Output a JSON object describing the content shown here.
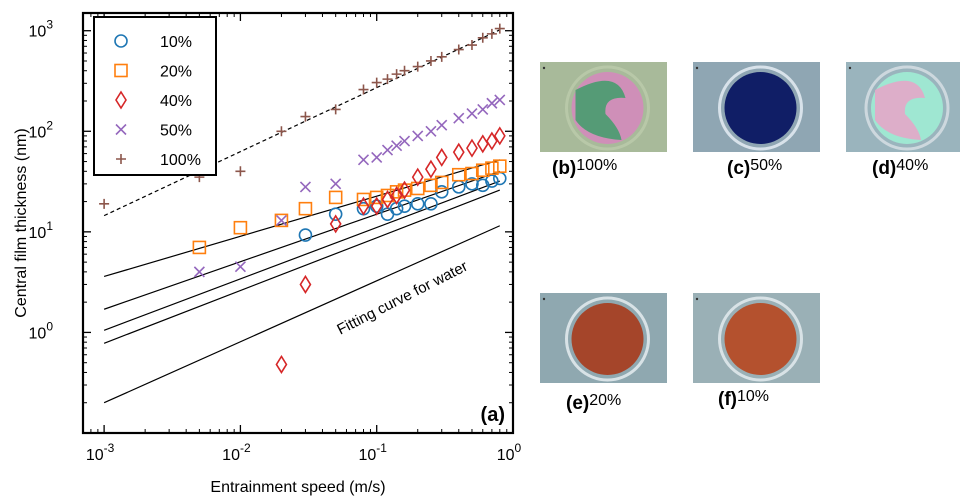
{
  "chart_data": {
    "type": "scatter",
    "panel_label": "(a)",
    "xlabel": "Entrainment speed (m/s)",
    "ylabel": "Central film thickness (nm)",
    "xscale": "log",
    "yscale": "log",
    "xlim": [
      0.0007,
      1.0
    ],
    "ylim": [
      0.1,
      1500
    ],
    "xticks": [
      {
        "value": 0.001,
        "base": "10",
        "exp": "-3"
      },
      {
        "value": 0.01,
        "base": "10",
        "exp": "-2"
      },
      {
        "value": 0.1,
        "base": "10",
        "exp": "-1"
      },
      {
        "value": 1,
        "base": "10",
        "exp": "0"
      }
    ],
    "yticks": [
      {
        "value": 1,
        "base": "10",
        "exp": "0"
      },
      {
        "value": 10,
        "base": "10",
        "exp": "1"
      },
      {
        "value": 100,
        "base": "10",
        "exp": "2"
      },
      {
        "value": 1000,
        "base": "10",
        "exp": "3"
      }
    ],
    "legend_position": "top-left",
    "series": [
      {
        "name": "10%",
        "marker": "circle",
        "color": "#1f77b4",
        "x": [
          0.03,
          0.05,
          0.08,
          0.1,
          0.12,
          0.14,
          0.16,
          0.2,
          0.25,
          0.3,
          0.4,
          0.5,
          0.6,
          0.7,
          0.8
        ],
        "y": [
          9.3,
          15,
          17,
          18,
          15,
          17,
          18,
          19,
          19,
          25,
          28,
          30,
          29,
          32,
          34
        ]
      },
      {
        "name": "20%",
        "marker": "square",
        "color": "#ff7f0e",
        "x": [
          0.005,
          0.01,
          0.02,
          0.03,
          0.05,
          0.08,
          0.1,
          0.12,
          0.14,
          0.16,
          0.2,
          0.25,
          0.3,
          0.4,
          0.5,
          0.6,
          0.7,
          0.8
        ],
        "y": [
          7,
          11,
          13,
          17,
          22,
          21,
          22,
          23,
          25,
          26,
          27,
          29,
          31,
          37,
          38,
          41,
          43,
          45
        ]
      },
      {
        "name": "40%",
        "marker": "diamond",
        "color": "#d62728",
        "x": [
          0.02,
          0.03,
          0.05,
          0.08,
          0.1,
          0.12,
          0.14,
          0.16,
          0.2,
          0.25,
          0.3,
          0.4,
          0.5,
          0.6,
          0.7,
          0.8
        ],
        "y": [
          0.48,
          3,
          12,
          18,
          18,
          21,
          23,
          26,
          35,
          42,
          55,
          62,
          68,
          75,
          80,
          90
        ]
      },
      {
        "name": "50%",
        "marker": "x",
        "color": "#9467bd",
        "x": [
          0.005,
          0.01,
          0.02,
          0.03,
          0.05,
          0.08,
          0.1,
          0.12,
          0.14,
          0.16,
          0.2,
          0.25,
          0.3,
          0.4,
          0.5,
          0.6,
          0.7,
          0.8
        ],
        "y": [
          4,
          4.5,
          13,
          28,
          30,
          52,
          55,
          65,
          72,
          80,
          90,
          100,
          115,
          135,
          150,
          165,
          190,
          205
        ]
      },
      {
        "name": "100%",
        "marker": "plus",
        "color": "#8c564b",
        "x": [
          0.001,
          0.005,
          0.01,
          0.02,
          0.03,
          0.05,
          0.08,
          0.1,
          0.12,
          0.14,
          0.16,
          0.2,
          0.25,
          0.3,
          0.4,
          0.5,
          0.6,
          0.7,
          0.8
        ],
        "y": [
          19,
          35,
          40,
          100,
          140,
          165,
          260,
          305,
          330,
          370,
          400,
          440,
          500,
          550,
          650,
          720,
          850,
          930,
          1050
        ]
      }
    ],
    "fit_lines": [
      {
        "style": "dashed",
        "x": [
          0.001,
          0.8
        ],
        "y": [
          14.5,
          1020
        ]
      },
      {
        "style": "solid",
        "x": [
          0.001,
          0.8
        ],
        "y": [
          3.6,
          52
        ]
      },
      {
        "style": "solid",
        "x": [
          0.001,
          0.8
        ],
        "y": [
          1.7,
          40
        ]
      },
      {
        "style": "solid",
        "x": [
          0.001,
          0.8
        ],
        "y": [
          1.05,
          32
        ]
      },
      {
        "style": "solid",
        "x": [
          0.001,
          0.8
        ],
        "y": [
          0.78,
          26
        ]
      },
      {
        "style": "solid",
        "x": [
          0.001,
          0.8
        ],
        "y": [
          0.2,
          11.5
        ]
      }
    ],
    "annotations": [
      {
        "text": "Fitting curve for water",
        "x": 0.16,
        "y": 2.0
      }
    ]
  },
  "images": [
    {
      "letter": "(b)",
      "label": "100%",
      "bg": "#a8ba9a",
      "disc": "#cf8fb8",
      "rim": "#b8c8a8",
      "overlay": "#3f9e6a"
    },
    {
      "letter": "(c)",
      "label": "50%",
      "bg": "#8fa6b3",
      "disc": "#101e66",
      "rim": "#d8e2ea",
      "overlay": ""
    },
    {
      "letter": "(d)",
      "label": "40%",
      "bg": "#9ab4bd",
      "disc": "#9fe7d2",
      "rim": "#cdd8de",
      "overlay": "#e8a3c8"
    },
    {
      "letter": "(e)",
      "label": "20%",
      "bg": "#8fa8b0",
      "disc": "#a5452a",
      "rim": "#d8e2e6",
      "overlay": ""
    },
    {
      "letter": "(f)",
      "label": "10%",
      "bg": "#9ab0b6",
      "disc": "#b4512e",
      "rim": "#d8e2e6",
      "overlay": ""
    }
  ]
}
